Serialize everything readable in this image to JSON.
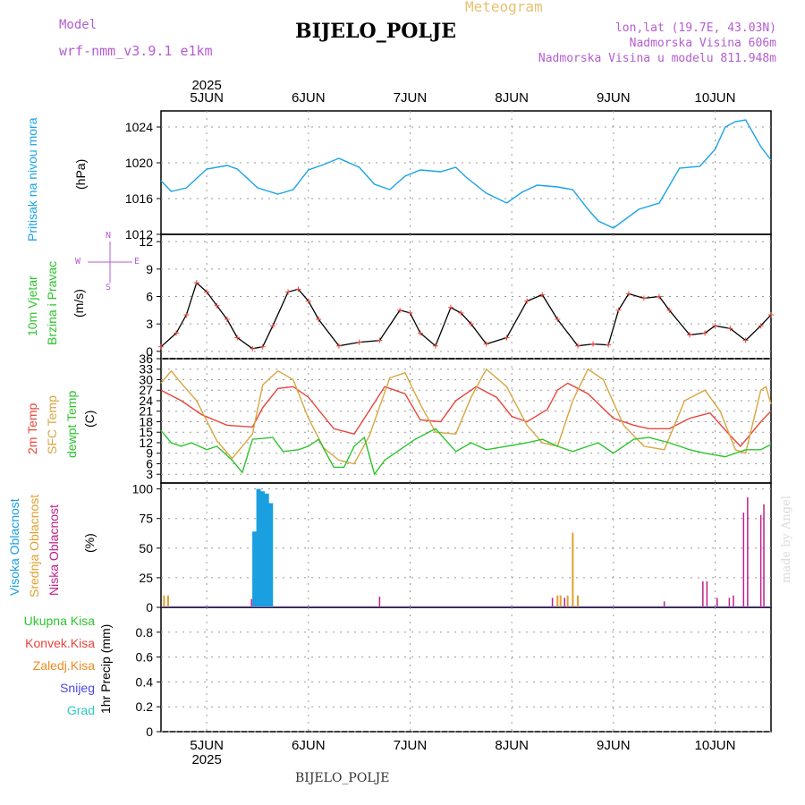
{
  "header": {
    "meteogram": "Meteogram",
    "model_label": "Model",
    "model_name": "wrf-nmm_v3.9.1 e1km",
    "station": "BIJELO_POLJE",
    "lonlat": "lon,lat (19.7E, 43.03N)",
    "elevation": "Nadmorska Visina 606m",
    "model_elevation": "Nadmorska Visina u modelu 811.948m",
    "footer_station": "BIJELO_POLJE",
    "watermark": "made by Angel"
  },
  "colors": {
    "pressure": "#1aa3e6",
    "temp2m": "#e8443a",
    "sfc": "#d9a540",
    "dewpt": "#2cc42c",
    "high_cloud": "#1a9fe0",
    "mid_cloud": "#e0a030",
    "low_cloud": "#c0208a",
    "wind_speed": "#000000",
    "wind_marker": "#e8443a"
  },
  "x_axis": {
    "year": "2025",
    "days": [
      "5JUN",
      "6JUN",
      "7JUN",
      "8JUN",
      "9JUN",
      "10JUN"
    ],
    "start": -0.45,
    "end": 5.55
  },
  "chart_data": [
    {
      "type": "line",
      "panel": "pressure",
      "ylabel_lines": [
        "Pritisak na nivou mora",
        "(hPa)"
      ],
      "ylim": [
        1012,
        1025.8
      ],
      "yticks": [
        1012,
        1016,
        1020,
        1024
      ],
      "x": [
        -0.45,
        -0.35,
        -0.2,
        0,
        0.2,
        0.3,
        0.5,
        0.7,
        0.85,
        1,
        1.15,
        1.3,
        1.5,
        1.65,
        1.8,
        1.95,
        2.1,
        2.3,
        2.45,
        2.55,
        2.75,
        2.95,
        3.1,
        3.25,
        3.45,
        3.6,
        3.75,
        3.85,
        4,
        4.25,
        4.45,
        4.65,
        4.85,
        5,
        5.1,
        5.2,
        5.3,
        5.45,
        5.55
      ],
      "y": [
        1018,
        1016.8,
        1017.2,
        1019.3,
        1019.7,
        1019.3,
        1017.2,
        1016.5,
        1017,
        1019.2,
        1019.8,
        1020.5,
        1019.5,
        1017.6,
        1017,
        1018.5,
        1019.2,
        1019,
        1019.5,
        1018.4,
        1016.6,
        1015.5,
        1016.7,
        1017.5,
        1017.3,
        1017,
        1014.8,
        1013.5,
        1012.7,
        1014.8,
        1015.5,
        1019.4,
        1019.6,
        1021.5,
        1024,
        1024.6,
        1024.8,
        1021.8,
        1020.3
      ]
    },
    {
      "type": "line",
      "panel": "wind",
      "ylabel_lines": [
        "10m Vjetar",
        "Brzina i Pravac",
        "(m/s)"
      ],
      "ylim": [
        -0.8,
        12.8
      ],
      "yticks": [
        0,
        3,
        6,
        9,
        12
      ],
      "compass": {
        "n": "N",
        "s": "S",
        "e": "E",
        "w": "W"
      },
      "x": [
        -0.45,
        -0.3,
        -0.2,
        -0.1,
        0,
        0.1,
        0.2,
        0.3,
        0.45,
        0.55,
        0.65,
        0.8,
        0.9,
        1,
        1.1,
        1.3,
        1.5,
        1.7,
        1.9,
        2,
        2.1,
        2.25,
        2.4,
        2.5,
        2.6,
        2.75,
        2.95,
        3.15,
        3.3,
        3.45,
        3.65,
        3.8,
        3.95,
        4.05,
        4.15,
        4.3,
        4.45,
        4.55,
        4.75,
        4.9,
        5,
        5.15,
        5.3,
        5.45,
        5.55
      ],
      "y": [
        0.5,
        2,
        4,
        7.5,
        6.5,
        5,
        3.5,
        1.5,
        0.3,
        0.5,
        2.8,
        6.5,
        6.8,
        5.5,
        3.5,
        0.6,
        1,
        1.2,
        4.5,
        4.2,
        2,
        0.6,
        4.8,
        4.2,
        3,
        0.8,
        1.5,
        5.5,
        6.2,
        3.5,
        0.6,
        0.8,
        0.7,
        4.5,
        6.3,
        5.8,
        6,
        4.5,
        1.8,
        2,
        2.8,
        2.5,
        1.2,
        2.8,
        4
      ]
    },
    {
      "type": "line",
      "panel": "temperature",
      "ylabel_lines": [
        "2m Temp",
        "SFC Temp",
        "dewpt Temp",
        "(C)"
      ],
      "ylim": [
        0.5,
        36
      ],
      "yticks": [
        3,
        6,
        9,
        12,
        15,
        18,
        21,
        24,
        27,
        30,
        33,
        36
      ],
      "series": [
        {
          "name": "2m Temp",
          "x": [
            -0.45,
            -0.25,
            -0.05,
            0.2,
            0.45,
            0.55,
            0.7,
            0.85,
            1,
            1.25,
            1.45,
            1.75,
            1.95,
            2.1,
            2.3,
            2.45,
            2.65,
            2.85,
            3,
            3.15,
            3.35,
            3.45,
            3.55,
            3.75,
            4,
            4.2,
            4.35,
            4.55,
            4.75,
            4.95,
            5.15,
            5.25,
            5.45,
            5.55
          ],
          "y": [
            27,
            24,
            20,
            17,
            16.5,
            22,
            27.5,
            28,
            25,
            16,
            14.5,
            28,
            26,
            18.5,
            18,
            24,
            28,
            25,
            19.5,
            18,
            21.5,
            27,
            29,
            26,
            19,
            17,
            16,
            16,
            19,
            20.5,
            14,
            11,
            18,
            21
          ]
        },
        {
          "name": "SFC Temp",
          "x": [
            -0.45,
            -0.35,
            -0.25,
            -0.1,
            0.1,
            0.25,
            0.45,
            0.55,
            0.7,
            0.85,
            1,
            1.15,
            1.3,
            1.45,
            1.6,
            1.8,
            1.95,
            2.1,
            2.25,
            2.45,
            2.6,
            2.75,
            2.95,
            3.15,
            3.3,
            3.45,
            3.6,
            3.75,
            3.9,
            4.1,
            4.3,
            4.5,
            4.7,
            4.9,
            5.05,
            5.2,
            5.3,
            5.45,
            5.5,
            5.55
          ],
          "y": [
            29,
            32.5,
            29,
            24,
            12.5,
            7.5,
            14.5,
            28.5,
            32.5,
            30,
            19,
            10.5,
            7,
            6,
            14,
            30.5,
            32,
            23,
            15,
            14.5,
            25,
            33,
            28,
            17,
            12,
            11,
            24,
            33,
            30,
            17,
            11,
            10,
            24,
            27,
            21,
            10,
            9,
            27,
            28,
            23
          ]
        },
        {
          "name": "dewpt Temp",
          "x": [
            -0.45,
            -0.35,
            -0.25,
            -0.15,
            0,
            0.1,
            0.25,
            0.35,
            0.45,
            0.65,
            0.75,
            0.9,
            1,
            1.1,
            1.25,
            1.35,
            1.45,
            1.55,
            1.65,
            1.75,
            1.85,
            2.05,
            2.25,
            2.45,
            2.6,
            2.75,
            2.95,
            3.15,
            3.3,
            3.45,
            3.6,
            3.75,
            3.85,
            4,
            4.2,
            4.35,
            4.55,
            4.75,
            4.9,
            5.1,
            5.3,
            5.45,
            5.55
          ],
          "y": [
            15.5,
            12,
            11,
            12,
            10,
            11,
            7,
            3.5,
            13,
            13.5,
            9.5,
            10,
            11,
            13,
            5,
            5,
            11,
            13.5,
            3,
            7,
            9,
            13,
            16,
            9.5,
            12,
            10,
            11,
            12,
            13,
            11,
            9.5,
            11,
            12,
            9,
            13,
            13.5,
            12,
            10,
            9,
            8,
            10,
            10,
            11.5
          ]
        }
      ]
    },
    {
      "type": "bar",
      "panel": "cloud",
      "ylabel_lines": [
        "Visoka Oblacnost",
        "Srednja Oblacnost",
        "Niska Oblacnost",
        "(%)"
      ],
      "ylim": [
        0,
        105
      ],
      "yticks": [
        0,
        25,
        50,
        75,
        100
      ],
      "series": [
        {
          "name": "Visoka Oblacnost",
          "x": [
            0.47,
            0.51,
            0.55,
            0.59,
            0.63
          ],
          "values": [
            64,
            100,
            98,
            96,
            88
          ]
        },
        {
          "name": "Srednja Oblacnost",
          "x": [
            -0.42,
            -0.38,
            3.45,
            3.48,
            3.55,
            3.6,
            3.65
          ],
          "values": [
            10,
            10,
            10,
            10,
            10,
            63,
            10
          ]
        },
        {
          "name": "Niska Oblacnost",
          "x": [
            0.44,
            1.7,
            3.4,
            3.52,
            4.5,
            4.88,
            4.92,
            5.02,
            5.14,
            5.18,
            5.28,
            5.32,
            5.45,
            5.48
          ],
          "values": [
            7,
            9,
            8,
            8,
            5,
            22,
            22,
            8,
            8,
            10,
            80,
            93,
            78,
            87
          ]
        }
      ]
    },
    {
      "type": "bar",
      "panel": "precip",
      "ylabel_lines": [
        "1hr Precip (mm)"
      ],
      "ylim": [
        0,
        1
      ],
      "yticks": [
        0,
        0.2,
        0.4,
        0.6,
        0.8
      ],
      "legend": [
        "Ukupna Kisa",
        "Konvek.Kisa",
        "Zaledj.Kisa",
        "Snijeg",
        "Grad"
      ],
      "legend_colors": [
        "#2cc42c",
        "#e8443a",
        "#f08a20",
        "#4a4ae0",
        "#2ac8c8"
      ],
      "values": []
    }
  ]
}
